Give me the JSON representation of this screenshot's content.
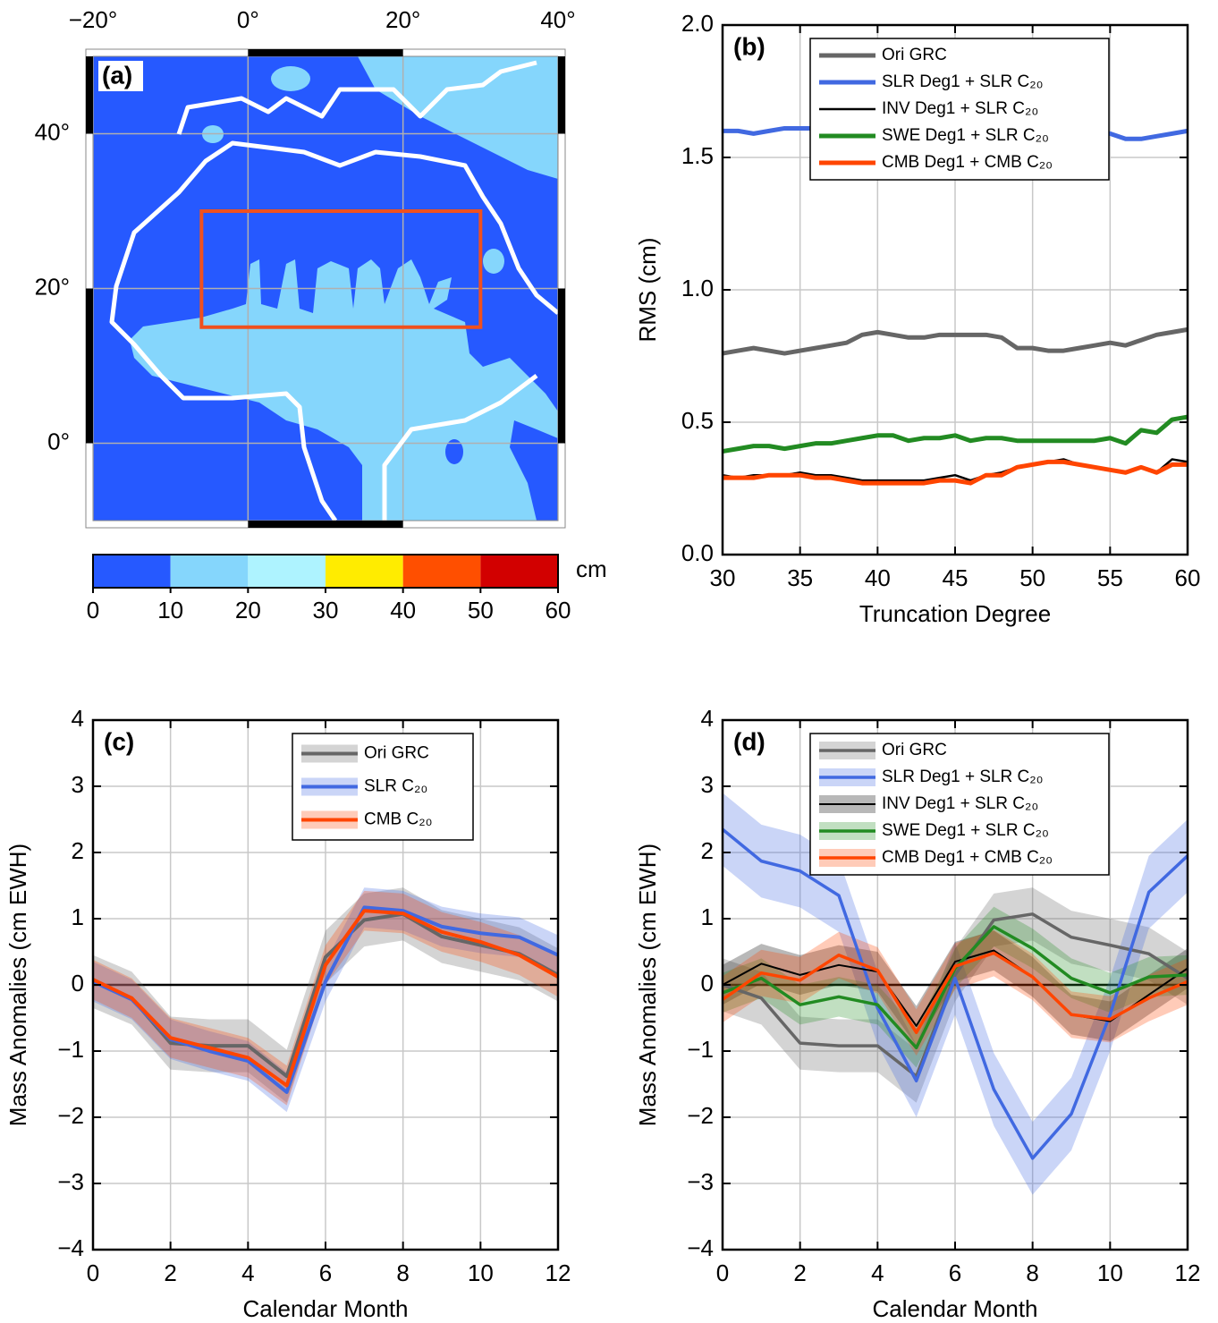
{
  "chart_data": [
    {
      "type": "map",
      "label": "(a)",
      "xlim": [
        -20,
        40
      ],
      "ylim": [
        -10,
        50
      ],
      "xticks": [
        {
          "value": -20,
          "label": "−20°"
        },
        {
          "value": 0,
          "label": "0°"
        },
        {
          "value": 20,
          "label": "20°"
        },
        {
          "value": 40,
          "label": "40°"
        }
      ],
      "yticks": [
        {
          "value": 0,
          "label": "0°"
        },
        {
          "value": 20,
          "label": "20°"
        },
        {
          "value": 40,
          "label": "40°"
        }
      ],
      "region": {
        "x": [
          -6,
          30
        ],
        "y": [
          15,
          30
        ],
        "color": "#f0501e"
      },
      "colorbar": {
        "bins": [
          0,
          10,
          20,
          30,
          40,
          50,
          60
        ],
        "colors": [
          "#2659ff",
          "#85d6fc",
          "#aef3ff",
          "#ffec00",
          "#ff4f00",
          "#d20000"
        ],
        "ticks": [
          0,
          10,
          20,
          30,
          40,
          50,
          60
        ],
        "unit": "cm"
      }
    },
    {
      "type": "line",
      "label": "(b)",
      "xlabel": "Truncation Degree",
      "ylabel": "RMS (cm)",
      "grid": true,
      "legend": "upper right",
      "x": [
        30,
        31,
        32,
        33,
        34,
        35,
        36,
        37,
        38,
        39,
        40,
        41,
        42,
        43,
        44,
        45,
        46,
        47,
        48,
        49,
        50,
        51,
        52,
        53,
        54,
        55,
        56,
        57,
        58,
        59,
        60
      ],
      "xlim": [
        30,
        60
      ],
      "ylim": [
        0,
        2
      ],
      "xticks": [
        30,
        35,
        40,
        45,
        50,
        55,
        60
      ],
      "yticks": [
        {
          "value": 0,
          "label": "0.0"
        },
        0.5,
        {
          "value": 1,
          "label": "1.0"
        },
        1.5,
        {
          "value": 2,
          "label": "2.0"
        }
      ],
      "series": [
        {
          "name": "Ori GRC",
          "color": "#666666",
          "linewidth": 5,
          "values": [
            0.76,
            0.77,
            0.78,
            0.77,
            0.76,
            0.77,
            0.78,
            0.79,
            0.8,
            0.83,
            0.84,
            0.83,
            0.82,
            0.82,
            0.83,
            0.83,
            0.83,
            0.83,
            0.82,
            0.78,
            0.78,
            0.77,
            0.77,
            0.78,
            0.79,
            0.8,
            0.79,
            0.81,
            0.83,
            0.84,
            0.85
          ]
        },
        {
          "name": "SLR Deg1 + SLR C₂₀",
          "color": "#4169e1",
          "linewidth": 5,
          "values": [
            1.6,
            1.6,
            1.59,
            1.6,
            1.61,
            1.61,
            1.61,
            1.61,
            1.61,
            1.61,
            1.61,
            1.61,
            1.61,
            1.61,
            1.61,
            1.61,
            1.61,
            1.61,
            1.61,
            1.61,
            1.61,
            1.6,
            1.6,
            1.6,
            1.59,
            1.59,
            1.57,
            1.57,
            1.58,
            1.59,
            1.6
          ]
        },
        {
          "name": "INV Deg1 + SLR C₂₀",
          "color": "#000000",
          "linewidth": 2.5,
          "values": [
            0.3,
            0.29,
            0.3,
            0.3,
            0.3,
            0.31,
            0.3,
            0.3,
            0.29,
            0.28,
            0.28,
            0.28,
            0.28,
            0.28,
            0.29,
            0.3,
            0.28,
            0.3,
            0.31,
            0.33,
            0.34,
            0.35,
            0.36,
            0.34,
            0.33,
            0.32,
            0.31,
            0.33,
            0.31,
            0.36,
            0.35
          ]
        },
        {
          "name": "SWE Deg1 + SLR C₂₀",
          "color": "#228b22",
          "linewidth": 5,
          "values": [
            0.39,
            0.4,
            0.41,
            0.41,
            0.4,
            0.41,
            0.42,
            0.42,
            0.43,
            0.44,
            0.45,
            0.45,
            0.43,
            0.44,
            0.44,
            0.45,
            0.43,
            0.44,
            0.44,
            0.43,
            0.43,
            0.43,
            0.43,
            0.43,
            0.43,
            0.44,
            0.42,
            0.47,
            0.46,
            0.51,
            0.52
          ]
        },
        {
          "name": "CMB Deg1 + CMB C₂₀",
          "color": "#ff4500",
          "linewidth": 5,
          "values": [
            0.29,
            0.29,
            0.29,
            0.3,
            0.3,
            0.3,
            0.29,
            0.29,
            0.28,
            0.27,
            0.27,
            0.27,
            0.27,
            0.27,
            0.28,
            0.28,
            0.27,
            0.3,
            0.3,
            0.33,
            0.34,
            0.35,
            0.35,
            0.34,
            0.33,
            0.32,
            0.31,
            0.33,
            0.31,
            0.34,
            0.34
          ]
        }
      ]
    },
    {
      "type": "band",
      "label": "(c)",
      "xlabel": "Calendar Month",
      "ylabel": "Mass Anomalies (cm EWH)",
      "grid": true,
      "legend": "upper center",
      "hline": 0,
      "x": [
        0,
        1,
        2,
        3,
        4,
        5,
        6,
        7,
        8,
        9,
        10,
        11,
        12
      ],
      "xlim": [
        0,
        12
      ],
      "ylim": [
        -4,
        4
      ],
      "xticks": [
        0,
        2,
        4,
        6,
        8,
        10,
        12
      ],
      "yticks": [
        {
          "value": -4,
          "label": "−4"
        },
        {
          "value": -3,
          "label": "−3"
        },
        {
          "value": -2,
          "label": "−2"
        },
        {
          "value": -1,
          "label": "−1"
        },
        0,
        1,
        2,
        3,
        4
      ],
      "series": [
        {
          "name": "Ori GRC",
          "color": "#666666",
          "linewidth": 4,
          "error": 0.4,
          "values": [
            0.05,
            -0.2,
            -0.88,
            -0.92,
            -0.92,
            -1.38,
            0.42,
            0.98,
            1.07,
            0.73,
            0.6,
            0.47,
            0.15
          ]
        },
        {
          "name": "SLR C₂₀",
          "color": "#4169e1",
          "linewidth": 4,
          "error": 0.3,
          "values": [
            0.05,
            -0.22,
            -0.82,
            -1.0,
            -1.15,
            -1.62,
            0.05,
            1.17,
            1.12,
            0.88,
            0.78,
            0.72,
            0.45
          ]
        },
        {
          "name": "CMB C₂₀",
          "color": "#ff4500",
          "linewidth": 4,
          "error": 0.3,
          "values": [
            0.08,
            -0.2,
            -0.8,
            -0.95,
            -1.1,
            -1.52,
            0.3,
            1.12,
            1.08,
            0.8,
            0.65,
            0.45,
            0.12
          ]
        }
      ]
    },
    {
      "type": "band",
      "label": "(d)",
      "xlabel": "Calendar Month",
      "ylabel": "Mass Anomalies (cm EWH)",
      "grid": true,
      "legend": "upper right",
      "hline": 0,
      "x": [
        0,
        1,
        2,
        3,
        4,
        5,
        6,
        7,
        8,
        9,
        10,
        11,
        12
      ],
      "xlim": [
        0,
        12
      ],
      "ylim": [
        -4,
        4
      ],
      "xticks": [
        0,
        2,
        4,
        6,
        8,
        10,
        12
      ],
      "yticks": [
        {
          "value": -4,
          "label": "−4"
        },
        {
          "value": -3,
          "label": "−3"
        },
        {
          "value": -2,
          "label": "−2"
        },
        {
          "value": -1,
          "label": "−1"
        },
        0,
        1,
        2,
        3,
        4
      ],
      "series": [
        {
          "name": "Ori GRC",
          "color": "#666666",
          "linewidth": 3.5,
          "error": 0.4,
          "values": [
            0.0,
            -0.2,
            -0.88,
            -0.92,
            -0.92,
            -1.38,
            0.15,
            0.98,
            1.07,
            0.72,
            0.6,
            0.47,
            0.1
          ]
        },
        {
          "name": "SLR Deg1 + SLR C₂₀",
          "color": "#4169e1",
          "linewidth": 3.5,
          "error": 0.55,
          "values": [
            2.35,
            1.87,
            1.72,
            1.35,
            -0.35,
            -1.45,
            0.1,
            -1.58,
            -2.62,
            -1.95,
            -0.45,
            1.4,
            1.95
          ]
        },
        {
          "name": "INV Deg1 + SLR C₂₀",
          "color": "#000000",
          "linewidth": 2,
          "error": 0.3,
          "values": [
            0.0,
            0.32,
            0.15,
            0.3,
            0.2,
            -0.62,
            0.35,
            0.52,
            0.12,
            -0.45,
            -0.55,
            -0.15,
            0.25
          ]
        },
        {
          "name": "SWE Deg1 + SLR C₂₀",
          "color": "#228b22",
          "linewidth": 3.5,
          "error": 0.3,
          "values": [
            -0.12,
            0.1,
            -0.3,
            -0.18,
            -0.3,
            -0.95,
            0.25,
            0.88,
            0.55,
            0.1,
            -0.12,
            0.12,
            0.15
          ]
        },
        {
          "name": "CMB Deg1 + CMB C₂₀",
          "color": "#ff4500",
          "linewidth": 3.5,
          "error": 0.35,
          "values": [
            -0.22,
            0.18,
            0.07,
            0.45,
            0.22,
            -0.72,
            0.28,
            0.48,
            0.12,
            -0.45,
            -0.52,
            -0.2,
            0.05
          ]
        }
      ]
    }
  ]
}
